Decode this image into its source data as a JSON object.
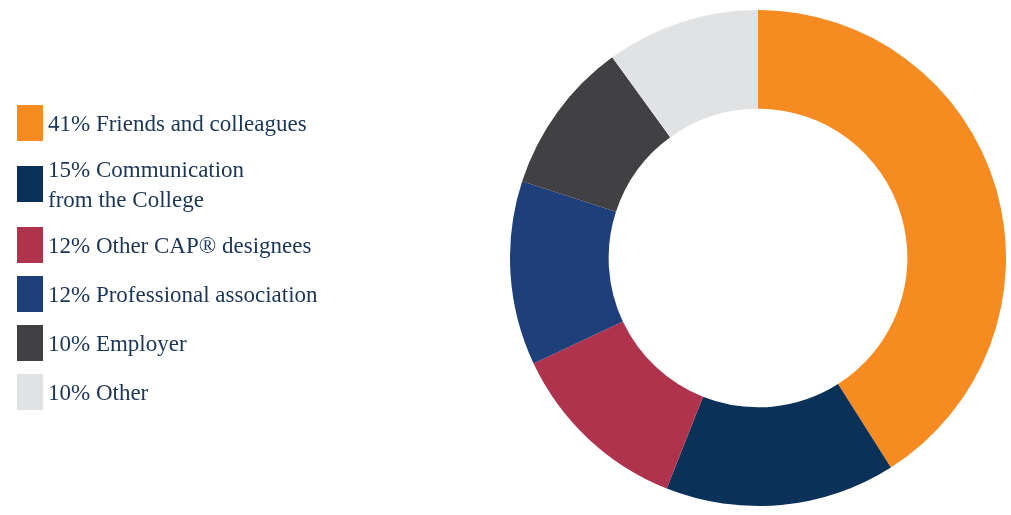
{
  "chart_data": {
    "type": "donut",
    "categories": [
      "41% Friends and colleagues",
      "15% Communication\nfrom the College",
      "12% Other CAP® designees",
      "12% Professional association",
      "10% Employer",
      "10% Other"
    ],
    "values": [
      41,
      15,
      12,
      12,
      10,
      10
    ],
    "colors": [
      "#f58b21",
      "#0b3158",
      "#b0334e",
      "#1f3f7a",
      "#414042",
      "#e1e2e4"
    ],
    "legend": "left"
  }
}
